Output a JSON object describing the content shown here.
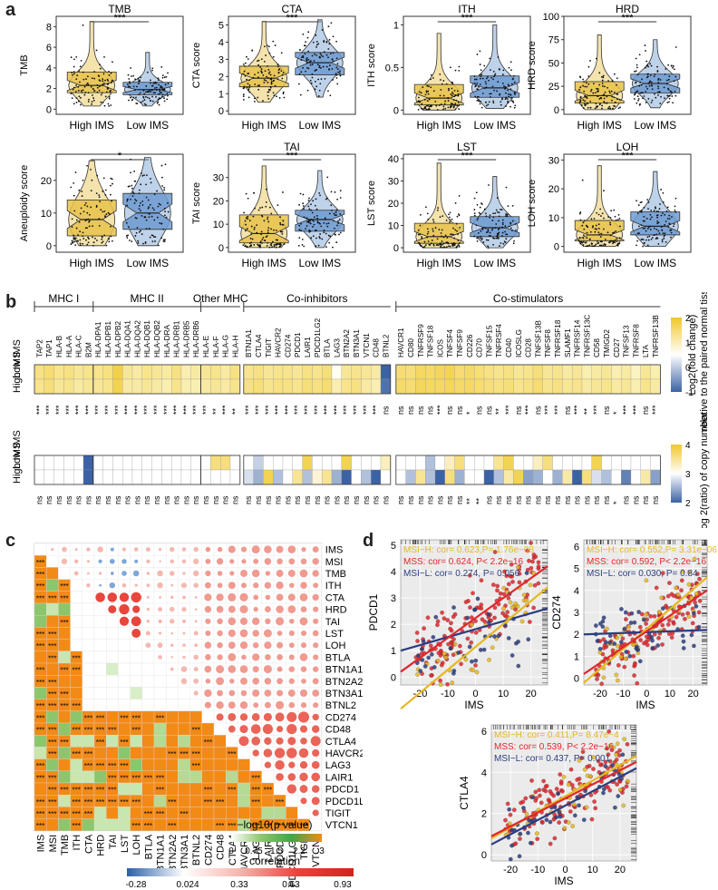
{
  "panels": {
    "a": "a",
    "b": "b",
    "c": "c",
    "d": "d"
  },
  "chart_data": [
    {
      "panel": "a",
      "type": "boxplot-violin",
      "groups": [
        "High IMS",
        "Low IMS"
      ],
      "colors": {
        "high": "#e6c24a",
        "low": "#6f9bd1",
        "highDots": "#222222"
      },
      "subplots": [
        {
          "title": "TMB",
          "ylabel": "TMB",
          "sig": "***",
          "ylim": [
            -0.5,
            9
          ],
          "ticks": [
            0,
            2,
            4,
            6,
            8
          ],
          "high": {
            "q1": 1.6,
            "med": 2.3,
            "q3": 3.6,
            "min": 0.3,
            "max": 8.5
          },
          "low": {
            "q1": 1.4,
            "med": 1.9,
            "q3": 2.6,
            "min": 0.3,
            "max": 5.5
          }
        },
        {
          "title": "CTA",
          "ylabel": "CTA score",
          "sig": "***",
          "ylim": [
            -0.2,
            5.5
          ],
          "ticks": [
            0,
            1,
            2,
            3,
            4,
            5
          ],
          "high": {
            "q1": 1.4,
            "med": 1.9,
            "q3": 2.6,
            "min": 0.5,
            "max": 5.2
          },
          "low": {
            "q1": 2.1,
            "med": 2.8,
            "q3": 3.4,
            "min": 0.8,
            "max": 5.3
          }
        },
        {
          "title": "ITH",
          "ylabel": "ITH score",
          "sig": "***",
          "ylim": [
            -0.05,
            1.1
          ],
          "ticks": [
            0.0,
            0.5,
            1.0
          ],
          "high": {
            "q1": 0.06,
            "med": 0.14,
            "q3": 0.3,
            "min": 0.0,
            "max": 0.9
          },
          "low": {
            "q1": 0.15,
            "med": 0.26,
            "q3": 0.4,
            "min": 0.02,
            "max": 1.0
          }
        },
        {
          "title": "HRD",
          "ylabel": "HRD score",
          "sig": "***",
          "ylim": [
            -5,
            100
          ],
          "ticks": [
            0,
            25,
            50,
            75,
            100
          ],
          "high": {
            "q1": 7,
            "med": 15,
            "q3": 30,
            "min": 0,
            "max": 80
          },
          "low": {
            "q1": 18,
            "med": 28,
            "q3": 38,
            "min": 2,
            "max": 75
          }
        },
        {
          "title": "",
          "ylabel": "Aneuploidy score",
          "sig": "*",
          "ylim": [
            -2,
            28
          ],
          "ticks": [
            0,
            10,
            20
          ],
          "high": {
            "q1": 3,
            "med": 8,
            "q3": 14,
            "min": 0,
            "max": 26
          },
          "low": {
            "q1": 5,
            "med": 10,
            "q3": 16,
            "min": 0,
            "max": 27
          }
        },
        {
          "title": "TAI",
          "ylabel": "TAI  score",
          "sig": "***",
          "ylim": [
            -2,
            40
          ],
          "ticks": [
            0,
            10,
            20,
            30
          ],
          "high": {
            "q1": 2,
            "med": 6,
            "q3": 14,
            "min": 0,
            "max": 35
          },
          "low": {
            "q1": 7,
            "med": 12,
            "q3": 16,
            "min": 0,
            "max": 33
          }
        },
        {
          "title": "LST",
          "ylabel": "LST score",
          "sig": "***",
          "ylim": [
            -2,
            42
          ],
          "ticks": [
            0,
            10,
            20,
            30,
            40
          ],
          "high": {
            "q1": 2,
            "med": 5,
            "q3": 11,
            "min": 0,
            "max": 38
          },
          "low": {
            "q1": 5,
            "med": 9,
            "q3": 14,
            "min": 0,
            "max": 32
          }
        },
        {
          "title": "LOH",
          "ylabel": "LOH score",
          "sig": "***",
          "ylim": [
            -2,
            32
          ],
          "ticks": [
            0,
            10,
            20,
            30
          ],
          "high": {
            "q1": 2,
            "med": 4,
            "q3": 9,
            "min": 0,
            "max": 28
          },
          "low": {
            "q1": 4,
            "med": 7,
            "q3": 12,
            "min": 0,
            "max": 26
          }
        }
      ]
    },
    {
      "panel": "b",
      "type": "heatmap",
      "groups": [
        {
          "label": "MHC I",
          "genes": [
            "TAP2",
            "TAP1",
            "HLA-B",
            "HLA-A",
            "HLA-C",
            "B2M"
          ]
        },
        {
          "label": "MHC II",
          "genes": [
            "HLA-DPA1",
            "HLA-DPB1",
            "HLA-DPB2",
            "HLA-DQA1",
            "HLA-DQA2",
            "HLA-DQB1",
            "HLA-DQB2",
            "HLA-DRA",
            "HLA-DRB1",
            "HLA-DRB5",
            "HLA-DRB6"
          ]
        },
        {
          "label": "Other MHC",
          "genes": [
            "HLA-E",
            "HLA-F",
            "HLA-G",
            "HLA-H"
          ]
        },
        {
          "label": "Co-inhibitors",
          "genes": [
            "BTN1A1",
            "CTLA4",
            "TIGIT",
            "HAVCR2",
            "CD274",
            "PDCD1",
            "LAIR1",
            "PDCD1LG2",
            "BTLA",
            "LAG3",
            "BTN2A2",
            "BTN3A1",
            "VTCN1",
            "CD48",
            "BTNL2"
          ]
        },
        {
          "label": "Co-stimulators",
          "genes": [
            "HAVCR1",
            "CD80",
            "TNFRSF9",
            "TNFSF18",
            "ICOS",
            "TNFSF4",
            "TNFSF9",
            "CD226",
            "CD70",
            "TNFSF15",
            "TNFRSF4",
            "CD40",
            "ICOSLG",
            "CD28",
            "TNFSF13B",
            "TNFSF8",
            "TNFRSF18",
            "SLAMF1",
            "TNFRSF14",
            "TNFRSF13C",
            "CD58",
            "TMIGD2",
            "CD27",
            "TNFSF13",
            "TNFRSF8",
            "LTA",
            "TNFRSF13B"
          ]
        }
      ],
      "rowLabels": [
        "Low IMS",
        "High IMS"
      ],
      "topSig": [
        "***",
        "***",
        "***",
        "***",
        "***",
        "***",
        "***",
        "***",
        "***",
        "***",
        "***",
        "***",
        "***",
        "***",
        "***",
        "***",
        "***",
        "***",
        "**",
        "***",
        "**",
        "***",
        "***",
        "***",
        "***",
        "***",
        "***",
        "***",
        "***",
        "***",
        "***",
        "***",
        "***",
        "***",
        "***",
        "ns",
        "ns",
        "ns",
        "ns",
        "ns",
        "***",
        "ns",
        "ns",
        "*",
        "ns",
        "ns",
        "**",
        "***",
        "ns",
        "***",
        "ns",
        "***",
        "***",
        "ns",
        "***",
        "**",
        "***",
        "ns",
        "*",
        "***",
        "***",
        "ns",
        "***",
        "***"
      ],
      "bottomSig": [
        "ns",
        "ns",
        "ns",
        "ns",
        "ns",
        "ns",
        "ns",
        "ns",
        "ns",
        "ns",
        "ns",
        "ns",
        "ns",
        "ns",
        "ns",
        "ns",
        "ns",
        "ns",
        "ns",
        "ns",
        "ns",
        "ns",
        "ns",
        "ns",
        "ns",
        "ns",
        "ns",
        "ns",
        "ns",
        "ns",
        "ns",
        "ns",
        "ns",
        "ns",
        "ns",
        "ns",
        "ns",
        "ns",
        "ns",
        "ns",
        "ns",
        "ns",
        "ns",
        "**",
        "**",
        "ns",
        "ns",
        "ns",
        "ns",
        "ns",
        "ns",
        "ns",
        "ns",
        "ns",
        "ns",
        "ns",
        "ns",
        "ns",
        "*",
        "ns",
        "ns",
        "ns",
        "ns",
        "ns"
      ],
      "legendTop": {
        "label": "Log2(fold change) relative to the paired normal tissue",
        "ticks": [
          2,
          1,
          0,
          -1
        ],
        "range": [
          -1,
          2
        ]
      },
      "legendBottom": {
        "label": "Log 2(ratio) of copy number",
        "ticks": [
          4,
          3,
          2
        ],
        "range": [
          2,
          4
        ]
      },
      "foldLow": [
        0.6,
        0.8,
        0.5,
        0.6,
        0.4,
        0.5,
        0.5,
        0.6,
        1.4,
        0.4,
        0.3,
        0.5,
        0.4,
        0.3,
        0.6,
        0.2,
        0.3,
        0.4,
        0.5,
        0.3,
        0.6,
        0.5,
        0.6,
        0.4,
        0.5,
        0.5,
        0.4,
        0.6,
        0.5,
        0.7,
        0.0,
        0.4,
        0.5,
        0.4,
        0.3,
        -1.0,
        0.8,
        0.7,
        1.0,
        0.9,
        1.1,
        1.2,
        0.8,
        0.9,
        0.7,
        0.6,
        0.5,
        0.6,
        0.4,
        0.5,
        0.7,
        0.4,
        0.5,
        0.3,
        0.4,
        0.2,
        0.3,
        0.4,
        0.2,
        0.3,
        0.1,
        0.4,
        0.2,
        -1.0
      ],
      "foldHigh": [
        0.5,
        0.7,
        0.4,
        0.5,
        0.3,
        0.4,
        0.4,
        0.5,
        1.3,
        0.3,
        0.3,
        0.4,
        0.3,
        0.2,
        0.5,
        0.2,
        0.2,
        0.3,
        0.4,
        0.3,
        0.5,
        0.6,
        0.7,
        0.5,
        0.6,
        0.6,
        0.5,
        0.7,
        0.6,
        0.8,
        0.2,
        0.5,
        0.6,
        0.3,
        0.2,
        -0.9,
        0.9,
        0.8,
        1.1,
        1.0,
        1.0,
        1.1,
        0.9,
        1.0,
        0.8,
        0.7,
        0.6,
        0.7,
        0.5,
        0.6,
        0.8,
        0.5,
        0.6,
        0.4,
        0.5,
        0.3,
        0.4,
        0.5,
        0.3,
        0.4,
        0.2,
        0.5,
        0.3,
        -0.9
      ],
      "cnLow": [
        3.0,
        3.0,
        3.0,
        3.0,
        3.0,
        2.0,
        3.0,
        3.0,
        3.0,
        3.0,
        3.0,
        3.0,
        3.0,
        3.0,
        3.0,
        3.0,
        3.0,
        3.0,
        3.6,
        3.6,
        3.0,
        3.0,
        2.7,
        3.0,
        3.0,
        3.0,
        3.0,
        3.8,
        3.0,
        3.0,
        3.0,
        3.8,
        3.0,
        3.0,
        3.0,
        3.3,
        3.0,
        3.0,
        3.0,
        2.6,
        3.0,
        3.3,
        3.6,
        3.0,
        3.0,
        3.0,
        3.5,
        3.8,
        3.0,
        3.0,
        3.3,
        3.6,
        3.0,
        3.0,
        3.0,
        3.0,
        3.8,
        3.0,
        3.0,
        3.0,
        3.0,
        3.0,
        3.0,
        3.0
      ],
      "cnHigh": [
        3.0,
        3.0,
        3.0,
        3.0,
        3.0,
        2.0,
        3.0,
        3.0,
        3.0,
        3.0,
        3.0,
        3.0,
        3.0,
        3.0,
        3.0,
        3.0,
        3.0,
        3.0,
        3.0,
        3.0,
        3.0,
        2.8,
        2.5,
        3.8,
        2.6,
        3.0,
        3.5,
        2.6,
        3.2,
        3.5,
        2.5,
        2.0,
        3.0,
        2.6,
        2.0,
        3.0,
        3.0,
        2.6,
        3.5,
        2.6,
        2.0,
        3.6,
        2.5,
        3.0,
        3.0,
        2.0,
        2.6,
        3.4,
        3.8,
        2.4,
        2.5,
        3.0,
        2.5,
        3.4,
        2.0,
        3.6,
        2.8,
        2.6,
        3.0,
        2.2,
        3.0,
        3.4,
        2.4,
        3.0
      ]
    },
    {
      "panel": "c",
      "type": "correlation-matrix",
      "labels": [
        "IMS",
        "MSI",
        "TMB",
        "ITH",
        "CTA",
        "HRD",
        "TAI",
        "LST",
        "LOH",
        "BTLA",
        "BTN1A1",
        "BTN2A2",
        "BTN3A1",
        "BTNL2",
        "CD274",
        "CD48",
        "CTLA4",
        "HAVCR2",
        "LAG3",
        "LAIR1",
        "PDCD1",
        "PDCD1LG2",
        "TIGIT",
        "VTCN1"
      ],
      "legendP": {
        "label": "−log10(p value)",
        "ticks": [
          "0",
          "0.75",
          "1.5",
          "2.2",
          "3"
        ]
      },
      "legendCor": {
        "label": "correlation",
        "ticks": [
          "-0.28",
          "0.024",
          "0.33",
          "0.63",
          "0.93"
        ]
      }
    },
    {
      "panel": "d",
      "type": "scatter",
      "subplots": [
        {
          "ylabel": "PDCD1",
          "xlabel": "IMS",
          "xlim": [
            -27,
            26
          ],
          "ylim": [
            -0.3,
            5.2
          ],
          "xticks": [
            -20,
            -10,
            0,
            10,
            20
          ],
          "yticks": [
            0,
            1,
            2,
            3,
            4,
            5
          ],
          "annotations": [
            "MSI−H: cor= 0.623,P= 1.76e−08",
            "MSS: cor= 0.624, P< 2.2e−16",
            "MSI−L: cor= 0.274, P= 0.056"
          ],
          "fits": {
            "msih": [
              -1.2,
              3.4
            ],
            "mss": [
              0.2,
              4.2
            ],
            "msil": [
              1.0,
              2.6
            ]
          }
        },
        {
          "ylabel": "CD274",
          "xlabel": "IMS",
          "xlim": [
            -27,
            26
          ],
          "ylim": [
            -0.3,
            6.3
          ],
          "xticks": [
            -20,
            -10,
            0,
            10,
            20
          ],
          "yticks": [
            0,
            1,
            2,
            3,
            4,
            5,
            6
          ],
          "annotations": [
            "MSI−H: cor= 0.552,P= 3.31e−06",
            "MSS: cor= 0.592, P< 2.2e−16",
            "MSI−L: cor= 0.030, P= 0.84"
          ],
          "fits": {
            "msih": [
              -0.2,
              4.6
            ],
            "mss": [
              0.2,
              4.0
            ],
            "msil": [
              2.0,
              2.2
            ]
          }
        },
        {
          "ylabel": "CTLA4",
          "xlabel": "IMS",
          "xlim": [
            -27,
            26
          ],
          "ylim": [
            -0.3,
            6.3
          ],
          "xticks": [
            -20,
            -10,
            0,
            10,
            20
          ],
          "yticks": [
            0,
            2,
            4,
            6
          ],
          "annotations": [
            "MSI−H: cor= 0.411,P= 8.47e−4",
            "MSS: cor= 0.539, P< 2.2e−16",
            "MSI−L: cor= 0.437, P= 0.001"
          ],
          "fits": {
            "msih": [
              0.8,
              4.8
            ],
            "mss": [
              0.9,
              4.5
            ],
            "msil": [
              0.5,
              4.2
            ]
          }
        }
      ],
      "colors": {
        "msih": "#e6b820",
        "mss": "#e0262b",
        "msil": "#2b3d80"
      }
    }
  ]
}
